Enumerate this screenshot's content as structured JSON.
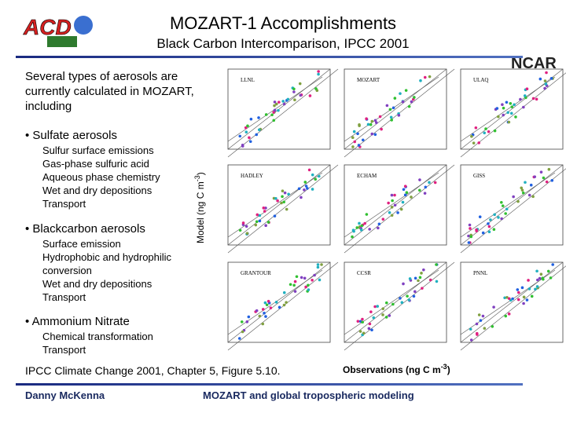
{
  "header": {
    "logo_left": "ACD",
    "logo_right": "NCAR",
    "title": "MOZART-1 Accomplishments",
    "subtitle": "Black Carbon Intercomparison, IPCC 2001"
  },
  "intro": "Several types of aerosols are currently calculated in MOZART, including",
  "sections": [
    {
      "heading": "Sulfate aerosols",
      "items": [
        "Sulfur surface emissions",
        "Gas-phase sulfuric acid",
        "Aqueous phase chemistry",
        "Wet and dry depositions",
        "Transport"
      ]
    },
    {
      "heading": "Blackcarbon aerosols",
      "items": [
        "Surface emission",
        "Hydrophobic and hydrophilic conversion",
        "Wet and dry depositions",
        "Transport"
      ]
    },
    {
      "heading": "Ammonium Nitrate",
      "items": [
        "Chemical transformation",
        "Transport"
      ]
    }
  ],
  "figure": {
    "y_axis_label": {
      "text": "Model (ng C m",
      "superscript": "-3",
      "close": ")"
    },
    "x_axis_label": {
      "text": "Observations (ng C m",
      "superscript": "-3",
      "close": ")"
    },
    "panels": [
      "LLNL",
      "MOZART",
      "ULAQ",
      "HADLEY",
      "ECHAM",
      "GISS",
      "GRANTOUR",
      "CCSR",
      "PNNL"
    ],
    "caption": "IPCC Climate Change 2001, Chapter 5, Figure 5.10."
  },
  "footer": {
    "author": "Danny McKenna",
    "topic": "MOZART and global tropospheric modeling"
  }
}
